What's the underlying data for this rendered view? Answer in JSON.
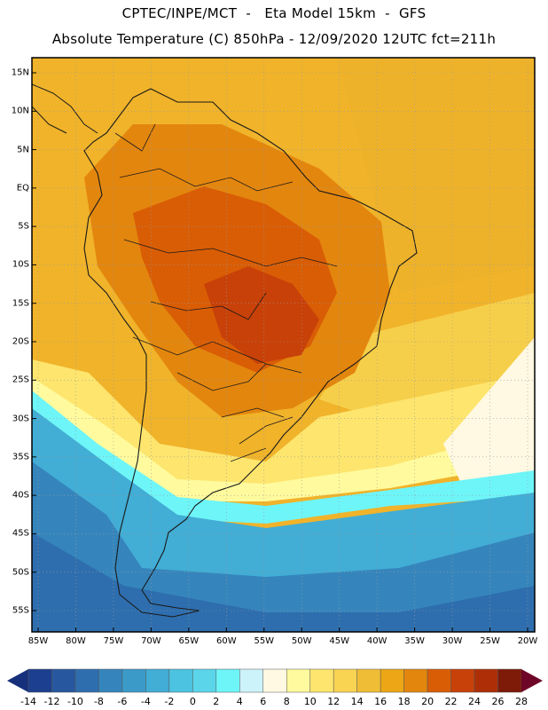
{
  "header": {
    "line1": "CPTEC/INPE/MCT  -   Eta Model 15km  -  GFS",
    "line2": "Absolute Temperature (C) 850hPa - 12/09/2020 12UTC fct=211h"
  },
  "map": {
    "lat_labels": [
      {
        "text": "15N",
        "lat": 15
      },
      {
        "text": "10N",
        "lat": 10
      },
      {
        "text": "5N",
        "lat": 5
      },
      {
        "text": "EQ",
        "lat": 0
      },
      {
        "text": "5S",
        "lat": -5
      },
      {
        "text": "10S",
        "lat": -10
      },
      {
        "text": "15S",
        "lat": -15
      },
      {
        "text": "20S",
        "lat": -20
      },
      {
        "text": "25S",
        "lat": -25
      },
      {
        "text": "30S",
        "lat": -30
      },
      {
        "text": "35S",
        "lat": -35
      },
      {
        "text": "40S",
        "lat": -40
      },
      {
        "text": "45S",
        "lat": -45
      },
      {
        "text": "50S",
        "lat": -50
      },
      {
        "text": "55S",
        "lat": -55
      }
    ],
    "lon_labels": [
      {
        "text": "85W",
        "lon": -85
      },
      {
        "text": "80W",
        "lon": -80
      },
      {
        "text": "75W",
        "lon": -75
      },
      {
        "text": "70W",
        "lon": -70
      },
      {
        "text": "65W",
        "lon": -65
      },
      {
        "text": "60W",
        "lon": -60
      },
      {
        "text": "55W",
        "lon": -55
      },
      {
        "text": "50W",
        "lon": -50
      },
      {
        "text": "45W",
        "lon": -45
      },
      {
        "text": "40W",
        "lon": -40
      },
      {
        "text": "35W",
        "lon": -35
      },
      {
        "text": "30W",
        "lon": -30
      },
      {
        "text": "25W",
        "lon": -25
      },
      {
        "text": "20W",
        "lon": -20
      }
    ],
    "colors": {
      "land_outline": "#1a1a1a",
      "grid": "#9a9a9a"
    }
  },
  "colorbar": {
    "labels": [
      "-14",
      "-12",
      "-10",
      "-8",
      "-6",
      "-4",
      "-2",
      "0",
      "2",
      "4",
      "6",
      "8",
      "10",
      "12",
      "14",
      "16",
      "18",
      "20",
      "22",
      "24",
      "26",
      "28"
    ],
    "colors": [
      "#1d3f8f",
      "#27589f",
      "#2e6eae",
      "#3585bc",
      "#3b9ac8",
      "#42add5",
      "#4cc3e0",
      "#5bd5ea",
      "#6ef5f8",
      "#cdf3fa",
      "#fff8e2",
      "#fffa9d",
      "#fde56e",
      "#f8d452",
      "#f0bd36",
      "#eca616",
      "#e3860e",
      "#d95d05",
      "#c84108",
      "#ae2f07",
      "#7e1a08"
    ],
    "low_arrow_color": "#16307c",
    "high_arrow_color": "#6e0627"
  }
}
